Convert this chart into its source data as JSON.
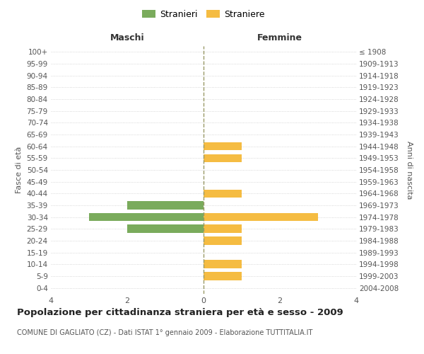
{
  "age_groups": [
    "100+",
    "95-99",
    "90-94",
    "85-89",
    "80-84",
    "75-79",
    "70-74",
    "65-69",
    "60-64",
    "55-59",
    "50-54",
    "45-49",
    "40-44",
    "35-39",
    "30-34",
    "25-29",
    "20-24",
    "15-19",
    "10-14",
    "5-9",
    "0-4"
  ],
  "birth_years": [
    "≤ 1908",
    "1909-1913",
    "1914-1918",
    "1919-1923",
    "1924-1928",
    "1929-1933",
    "1934-1938",
    "1939-1943",
    "1944-1948",
    "1949-1953",
    "1954-1958",
    "1959-1963",
    "1964-1968",
    "1969-1973",
    "1974-1978",
    "1979-1983",
    "1984-1988",
    "1989-1993",
    "1994-1998",
    "1999-2003",
    "2004-2008"
  ],
  "males": [
    0,
    0,
    0,
    0,
    0,
    0,
    0,
    0,
    0,
    0,
    0,
    0,
    0,
    2,
    3,
    2,
    0,
    0,
    0,
    0,
    0
  ],
  "females": [
    0,
    0,
    0,
    0,
    0,
    0,
    0,
    0,
    1,
    1,
    0,
    0,
    1,
    0,
    3,
    1,
    1,
    0,
    1,
    1,
    0
  ],
  "male_color": "#7aab5c",
  "female_color": "#f5bc42",
  "center_line_color": "#999966",
  "grid_color": "#cccccc",
  "background_color": "#ffffff",
  "title": "Popolazione per cittadinanza straniera per età e sesso - 2009",
  "subtitle": "COMUNE DI GAGLIATO (CZ) - Dati ISTAT 1° gennaio 2009 - Elaborazione TUTTITALIA.IT",
  "xlabel_left": "Maschi",
  "xlabel_right": "Femmine",
  "ylabel_left": "Fasce di età",
  "ylabel_right": "Anni di nascita",
  "legend_male": "Stranieri",
  "legend_female": "Straniere",
  "xlim": 4,
  "figsize": [
    6.0,
    5.0
  ],
  "dpi": 100
}
